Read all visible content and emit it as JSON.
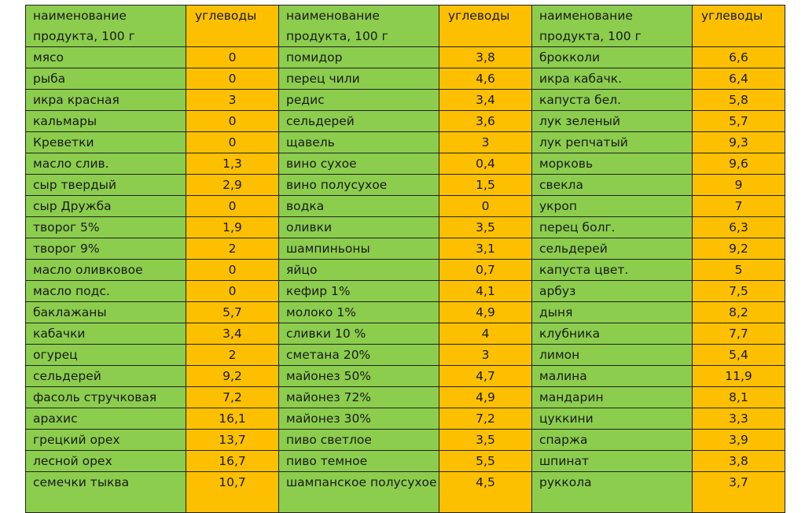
{
  "table": {
    "headers": [
      "наименование продукта, 100 г",
      "углеводы",
      "наименование продукта, 100 г",
      "углеводы",
      "наименование продукта, 100 г",
      "углеводы"
    ],
    "rows": [
      [
        "мясо",
        "0",
        "помидор",
        "3,8",
        "брокколи",
        "6,6"
      ],
      [
        "рыба",
        "0",
        "перец чили",
        "4,6",
        "икра кабачк.",
        "6,4"
      ],
      [
        "икра красная",
        "3",
        "редис",
        "3,4",
        "капуста бел.",
        "5,8"
      ],
      [
        "кальмары",
        "0",
        "сельдерей",
        "3,6",
        "лук зеленый",
        "5,7"
      ],
      [
        "Креветки",
        "0",
        "щавель",
        "3",
        "лук репчатый",
        "9,3"
      ],
      [
        "масло слив.",
        "1,3",
        "вино сухое",
        "0,4",
        "морковь",
        "9,6"
      ],
      [
        "сыр твердый",
        "2,9",
        "вино полусухое",
        "1,5",
        "свекла",
        "9"
      ],
      [
        "сыр Дружба",
        "0",
        "водка",
        "0",
        "укроп",
        "7"
      ],
      [
        "творог 5%",
        "1,9",
        "оливки",
        "3,5",
        "перец болг.",
        "6,3"
      ],
      [
        "творог 9%",
        "2",
        "шампиньоны",
        "3,1",
        "сельдерей",
        "9,2"
      ],
      [
        "масло оливковое",
        "0",
        "яйцо",
        "0,7",
        "капуста цвет.",
        "5"
      ],
      [
        "масло подс.",
        "0",
        "кефир 1%",
        "4,1",
        "арбуз",
        "7,5"
      ],
      [
        "баклажаны",
        "5,7",
        "молоко 1%",
        "4,9",
        "дыня",
        "8,2"
      ],
      [
        "кабачки",
        "3,4",
        "сливки 10 %",
        "4",
        "клубника",
        "7,7"
      ],
      [
        "огурец",
        "2",
        "сметана 20%",
        "3",
        "лимон",
        "5,4"
      ],
      [
        "сельдерей",
        "9,2",
        "майонез 50%",
        "4,7",
        "малина",
        "11,9"
      ],
      [
        "фасоль стручковая",
        "7,2",
        "майонез 72%",
        "4,9",
        "мандарин",
        "8,1"
      ],
      [
        "арахис",
        "16,1",
        "майонез 30%",
        "7,2",
        "цуккини",
        "3,3"
      ],
      [
        "грецкий орех",
        "13,7",
        "пиво светлое",
        "3,5",
        "спаржа",
        "3,9"
      ],
      [
        "лесной орех",
        "16,7",
        "пиво темное",
        "5,5",
        "шпинат",
        "3,8"
      ],
      [
        "семечки тыква",
        "10,7",
        "шампанское полусухое",
        "4,5",
        "руккола",
        "3,7"
      ]
    ]
  },
  "colors": {
    "name_column": "#8ccd4e",
    "value_column": "#fcc000",
    "border": "#222222"
  }
}
